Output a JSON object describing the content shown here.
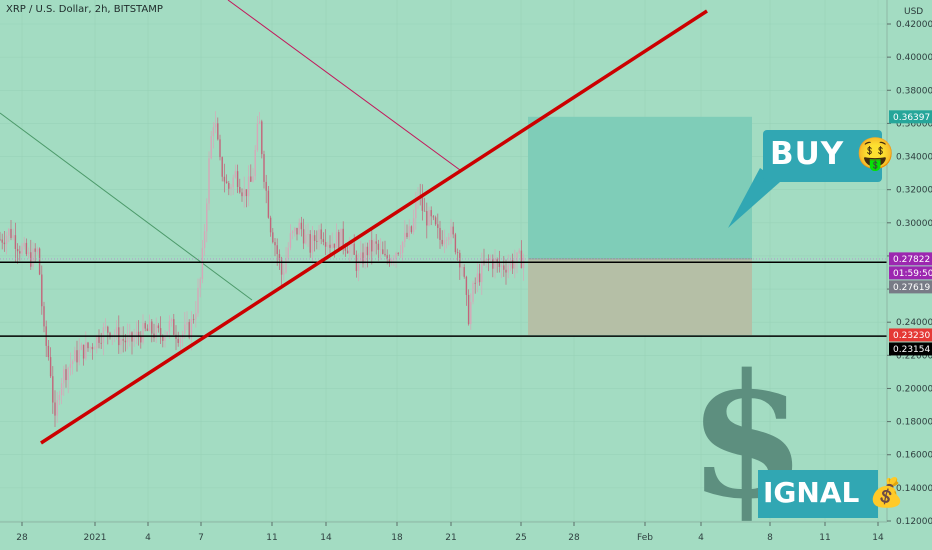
{
  "header": {
    "title": "XRP / U.S. Dollar, 2h, BITSTAMP",
    "currency": "USD"
  },
  "chart_data": {
    "type": "candlestick",
    "title": "XRP / U.S. Dollar, 2h, BITSTAMP",
    "ylabel": "USD",
    "ylim": [
      0.12,
      0.42
    ],
    "y_ticks": [
      "0.42000",
      "0.40000",
      "0.38000",
      "0.36000",
      "0.34000",
      "0.32000",
      "0.30000",
      "0.28000",
      "0.26000",
      "0.24000",
      "0.22000",
      "0.20000",
      "0.18000",
      "0.16000",
      "0.14000",
      "0.12000"
    ],
    "x_ticks": [
      "28",
      "2021",
      "4",
      "7",
      "11",
      "14",
      "18",
      "21",
      "25",
      "28",
      "Feb",
      "4",
      "8",
      "11",
      "14"
    ],
    "price_levels": [
      {
        "label": "0.36397",
        "value": 0.36397,
        "color": "#26a69a"
      },
      {
        "label": "0.27822",
        "value": 0.27822,
        "color": "#9c27b0"
      },
      {
        "label": "01:59:50",
        "value": 0.2772,
        "color": "#9c27b0"
      },
      {
        "label": "0.27619",
        "value": 0.27619,
        "color": "#787b86"
      },
      {
        "label": "0.23230",
        "value": 0.2323,
        "color": "#e53935"
      },
      {
        "label": "0.23154",
        "value": 0.23154,
        "color": "#000000"
      }
    ],
    "horizontal_lines": [
      0.2762,
      0.2316
    ],
    "colors": {
      "up": "#26a69a",
      "down": "#ef5350",
      "trendline": "#d50000"
    }
  },
  "annotations": {
    "buy_label": "BUY",
    "buy_emoji": "🤑",
    "signal_label": "IGNAL",
    "signal_emoji": "💰",
    "dollar_sign": "$"
  }
}
